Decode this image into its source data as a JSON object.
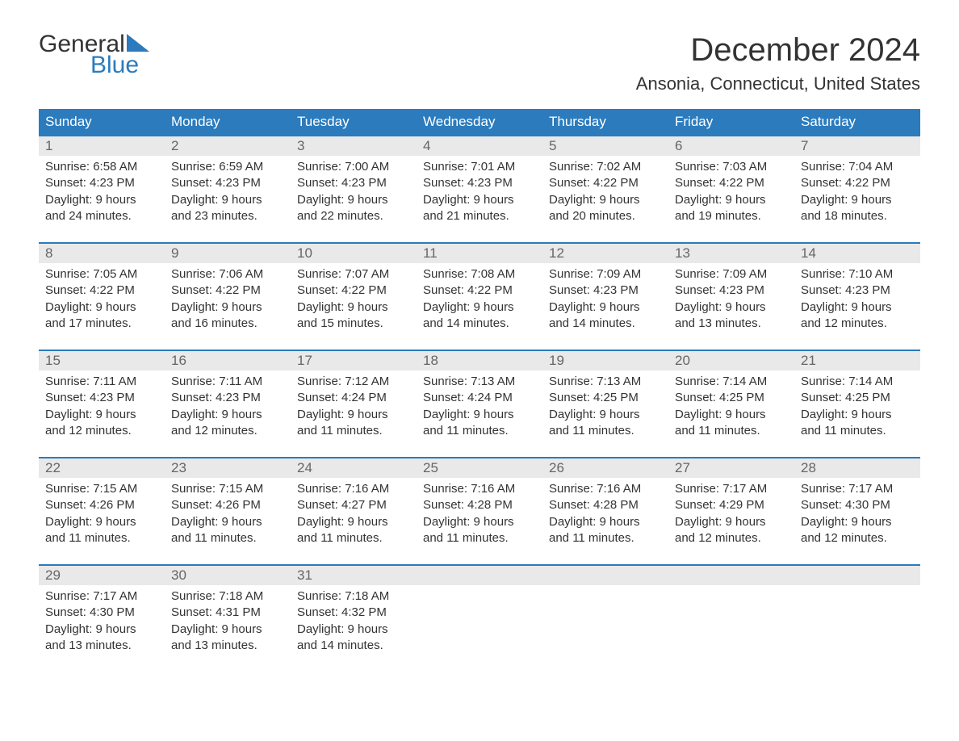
{
  "logo": {
    "part1": "General",
    "part2": "Blue",
    "sail_color": "#2b7bbd"
  },
  "title": "December 2024",
  "location": "Ansonia, Connecticut, United States",
  "colors": {
    "header_bg": "#2b7bbd",
    "header_text": "#ffffff",
    "daynum_bg": "#e9e9e9",
    "daynum_text": "#666666",
    "body_text": "#333333",
    "rule": "#2b7bbd",
    "page_bg": "#ffffff"
  },
  "fonts": {
    "title_pt": 40,
    "location_pt": 22,
    "dow_pt": 17,
    "daynum_pt": 17,
    "body_pt": 15
  },
  "days_of_week": [
    "Sunday",
    "Monday",
    "Tuesday",
    "Wednesday",
    "Thursday",
    "Friday",
    "Saturday"
  ],
  "weeks": [
    [
      {
        "n": "1",
        "sunrise": "Sunrise: 6:58 AM",
        "sunset": "Sunset: 4:23 PM",
        "d1": "Daylight: 9 hours",
        "d2": "and 24 minutes."
      },
      {
        "n": "2",
        "sunrise": "Sunrise: 6:59 AM",
        "sunset": "Sunset: 4:23 PM",
        "d1": "Daylight: 9 hours",
        "d2": "and 23 minutes."
      },
      {
        "n": "3",
        "sunrise": "Sunrise: 7:00 AM",
        "sunset": "Sunset: 4:23 PM",
        "d1": "Daylight: 9 hours",
        "d2": "and 22 minutes."
      },
      {
        "n": "4",
        "sunrise": "Sunrise: 7:01 AM",
        "sunset": "Sunset: 4:23 PM",
        "d1": "Daylight: 9 hours",
        "d2": "and 21 minutes."
      },
      {
        "n": "5",
        "sunrise": "Sunrise: 7:02 AM",
        "sunset": "Sunset: 4:22 PM",
        "d1": "Daylight: 9 hours",
        "d2": "and 20 minutes."
      },
      {
        "n": "6",
        "sunrise": "Sunrise: 7:03 AM",
        "sunset": "Sunset: 4:22 PM",
        "d1": "Daylight: 9 hours",
        "d2": "and 19 minutes."
      },
      {
        "n": "7",
        "sunrise": "Sunrise: 7:04 AM",
        "sunset": "Sunset: 4:22 PM",
        "d1": "Daylight: 9 hours",
        "d2": "and 18 minutes."
      }
    ],
    [
      {
        "n": "8",
        "sunrise": "Sunrise: 7:05 AM",
        "sunset": "Sunset: 4:22 PM",
        "d1": "Daylight: 9 hours",
        "d2": "and 17 minutes."
      },
      {
        "n": "9",
        "sunrise": "Sunrise: 7:06 AM",
        "sunset": "Sunset: 4:22 PM",
        "d1": "Daylight: 9 hours",
        "d2": "and 16 minutes."
      },
      {
        "n": "10",
        "sunrise": "Sunrise: 7:07 AM",
        "sunset": "Sunset: 4:22 PM",
        "d1": "Daylight: 9 hours",
        "d2": "and 15 minutes."
      },
      {
        "n": "11",
        "sunrise": "Sunrise: 7:08 AM",
        "sunset": "Sunset: 4:22 PM",
        "d1": "Daylight: 9 hours",
        "d2": "and 14 minutes."
      },
      {
        "n": "12",
        "sunrise": "Sunrise: 7:09 AM",
        "sunset": "Sunset: 4:23 PM",
        "d1": "Daylight: 9 hours",
        "d2": "and 14 minutes."
      },
      {
        "n": "13",
        "sunrise": "Sunrise: 7:09 AM",
        "sunset": "Sunset: 4:23 PM",
        "d1": "Daylight: 9 hours",
        "d2": "and 13 minutes."
      },
      {
        "n": "14",
        "sunrise": "Sunrise: 7:10 AM",
        "sunset": "Sunset: 4:23 PM",
        "d1": "Daylight: 9 hours",
        "d2": "and 12 minutes."
      }
    ],
    [
      {
        "n": "15",
        "sunrise": "Sunrise: 7:11 AM",
        "sunset": "Sunset: 4:23 PM",
        "d1": "Daylight: 9 hours",
        "d2": "and 12 minutes."
      },
      {
        "n": "16",
        "sunrise": "Sunrise: 7:11 AM",
        "sunset": "Sunset: 4:23 PM",
        "d1": "Daylight: 9 hours",
        "d2": "and 12 minutes."
      },
      {
        "n": "17",
        "sunrise": "Sunrise: 7:12 AM",
        "sunset": "Sunset: 4:24 PM",
        "d1": "Daylight: 9 hours",
        "d2": "and 11 minutes."
      },
      {
        "n": "18",
        "sunrise": "Sunrise: 7:13 AM",
        "sunset": "Sunset: 4:24 PM",
        "d1": "Daylight: 9 hours",
        "d2": "and 11 minutes."
      },
      {
        "n": "19",
        "sunrise": "Sunrise: 7:13 AM",
        "sunset": "Sunset: 4:25 PM",
        "d1": "Daylight: 9 hours",
        "d2": "and 11 minutes."
      },
      {
        "n": "20",
        "sunrise": "Sunrise: 7:14 AM",
        "sunset": "Sunset: 4:25 PM",
        "d1": "Daylight: 9 hours",
        "d2": "and 11 minutes."
      },
      {
        "n": "21",
        "sunrise": "Sunrise: 7:14 AM",
        "sunset": "Sunset: 4:25 PM",
        "d1": "Daylight: 9 hours",
        "d2": "and 11 minutes."
      }
    ],
    [
      {
        "n": "22",
        "sunrise": "Sunrise: 7:15 AM",
        "sunset": "Sunset: 4:26 PM",
        "d1": "Daylight: 9 hours",
        "d2": "and 11 minutes."
      },
      {
        "n": "23",
        "sunrise": "Sunrise: 7:15 AM",
        "sunset": "Sunset: 4:26 PM",
        "d1": "Daylight: 9 hours",
        "d2": "and 11 minutes."
      },
      {
        "n": "24",
        "sunrise": "Sunrise: 7:16 AM",
        "sunset": "Sunset: 4:27 PM",
        "d1": "Daylight: 9 hours",
        "d2": "and 11 minutes."
      },
      {
        "n": "25",
        "sunrise": "Sunrise: 7:16 AM",
        "sunset": "Sunset: 4:28 PM",
        "d1": "Daylight: 9 hours",
        "d2": "and 11 minutes."
      },
      {
        "n": "26",
        "sunrise": "Sunrise: 7:16 AM",
        "sunset": "Sunset: 4:28 PM",
        "d1": "Daylight: 9 hours",
        "d2": "and 11 minutes."
      },
      {
        "n": "27",
        "sunrise": "Sunrise: 7:17 AM",
        "sunset": "Sunset: 4:29 PM",
        "d1": "Daylight: 9 hours",
        "d2": "and 12 minutes."
      },
      {
        "n": "28",
        "sunrise": "Sunrise: 7:17 AM",
        "sunset": "Sunset: 4:30 PM",
        "d1": "Daylight: 9 hours",
        "d2": "and 12 minutes."
      }
    ],
    [
      {
        "n": "29",
        "sunrise": "Sunrise: 7:17 AM",
        "sunset": "Sunset: 4:30 PM",
        "d1": "Daylight: 9 hours",
        "d2": "and 13 minutes."
      },
      {
        "n": "30",
        "sunrise": "Sunrise: 7:18 AM",
        "sunset": "Sunset: 4:31 PM",
        "d1": "Daylight: 9 hours",
        "d2": "and 13 minutes."
      },
      {
        "n": "31",
        "sunrise": "Sunrise: 7:18 AM",
        "sunset": "Sunset: 4:32 PM",
        "d1": "Daylight: 9 hours",
        "d2": "and 14 minutes."
      },
      {
        "n": "",
        "sunrise": "",
        "sunset": "",
        "d1": "",
        "d2": ""
      },
      {
        "n": "",
        "sunrise": "",
        "sunset": "",
        "d1": "",
        "d2": ""
      },
      {
        "n": "",
        "sunrise": "",
        "sunset": "",
        "d1": "",
        "d2": ""
      },
      {
        "n": "",
        "sunrise": "",
        "sunset": "",
        "d1": "",
        "d2": ""
      }
    ]
  ]
}
